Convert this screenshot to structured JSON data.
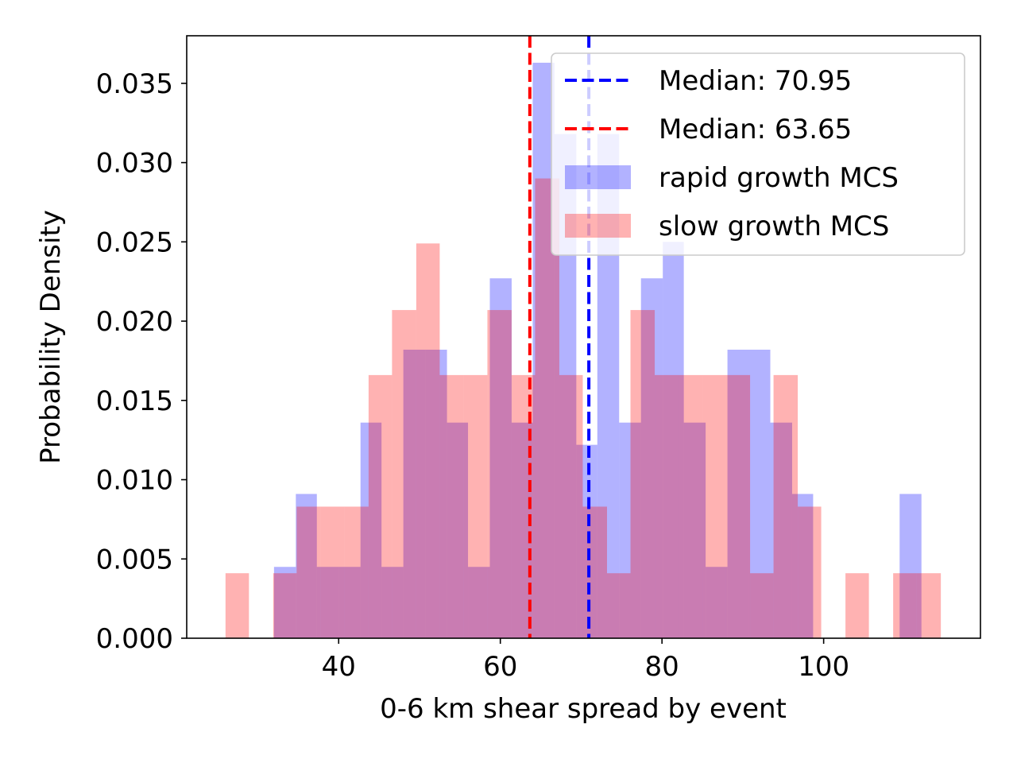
{
  "chart_data": {
    "type": "histogram",
    "xlabel": "0-6 km shear spread by event",
    "ylabel": "Probability Density",
    "xlim": [
      21.2,
      119.4
    ],
    "ylim": [
      0,
      0.038
    ],
    "xticks": [
      40,
      60,
      80,
      100
    ],
    "yticks": [
      0.0,
      0.005,
      0.01,
      0.015,
      0.02,
      0.025,
      0.03,
      0.035
    ],
    "ytick_labels": [
      "0.000",
      "0.005",
      "0.010",
      "0.015",
      "0.020",
      "0.025",
      "0.030",
      "0.035"
    ],
    "grid": false,
    "legend_position": "top-right",
    "series": [
      {
        "name": "rapid growth MCS",
        "color": "#0000ff",
        "alpha": 0.3,
        "bin_edges": [
          32.0,
          34.7,
          37.3,
          40.0,
          42.7,
          45.3,
          48.0,
          50.7,
          53.4,
          56.0,
          58.7,
          61.4,
          64.0,
          66.7,
          69.4,
          72.0,
          74.7,
          77.4,
          80.1,
          82.7,
          85.4,
          88.1,
          90.7,
          93.4,
          96.1,
          98.7,
          101.4,
          104.1,
          106.8,
          109.4,
          112.1
        ],
        "density": [
          0.0045,
          0.0091,
          0.0045,
          0.0045,
          0.0136,
          0.0045,
          0.0182,
          0.0182,
          0.0136,
          0.0045,
          0.0227,
          0.0136,
          0.0363,
          0.0318,
          0.0122,
          0.0318,
          0.0136,
          0.0227,
          0.025,
          0.0136,
          0.0045,
          0.0182,
          0.0182,
          0.0136,
          0.0091,
          0.0,
          0.0,
          0.0,
          0.0,
          0.0091
        ]
      },
      {
        "name": "slow growth MCS",
        "color": "#ff0000",
        "alpha": 0.3,
        "bin_edges": [
          26.0,
          28.9,
          31.9,
          34.8,
          37.8,
          40.7,
          43.7,
          46.6,
          49.6,
          52.5,
          55.5,
          58.4,
          61.4,
          64.3,
          67.3,
          70.2,
          73.2,
          76.1,
          79.1,
          82.0,
          85.0,
          87.9,
          90.9,
          93.8,
          96.8,
          99.7,
          102.7,
          105.6,
          108.6,
          111.5,
          114.5
        ],
        "density": [
          0.0041,
          0.0,
          0.0041,
          0.0083,
          0.0083,
          0.0083,
          0.0166,
          0.0207,
          0.0249,
          0.0166,
          0.0166,
          0.0207,
          0.0166,
          0.029,
          0.0166,
          0.0083,
          0.0041,
          0.0207,
          0.0166,
          0.0166,
          0.0166,
          0.0166,
          0.0041,
          0.0166,
          0.0083,
          0.0,
          0.0041,
          0.0,
          0.0041,
          0.0041
        ]
      }
    ],
    "medians": [
      {
        "value": 70.95,
        "label": "Median: 70.95",
        "color": "#0000ff"
      },
      {
        "value": 63.65,
        "label": "Median: 63.65",
        "color": "#ff0000"
      }
    ],
    "legend": [
      {
        "label": "Median: 70.95",
        "kind": "dashed-line",
        "color": "#0000ff"
      },
      {
        "label": "Median: 63.65",
        "kind": "dashed-line",
        "color": "#ff0000"
      },
      {
        "label": "rapid growth MCS",
        "kind": "patch",
        "color": "#0000ff"
      },
      {
        "label": "slow growth MCS",
        "kind": "patch",
        "color": "#ff0000"
      }
    ]
  }
}
